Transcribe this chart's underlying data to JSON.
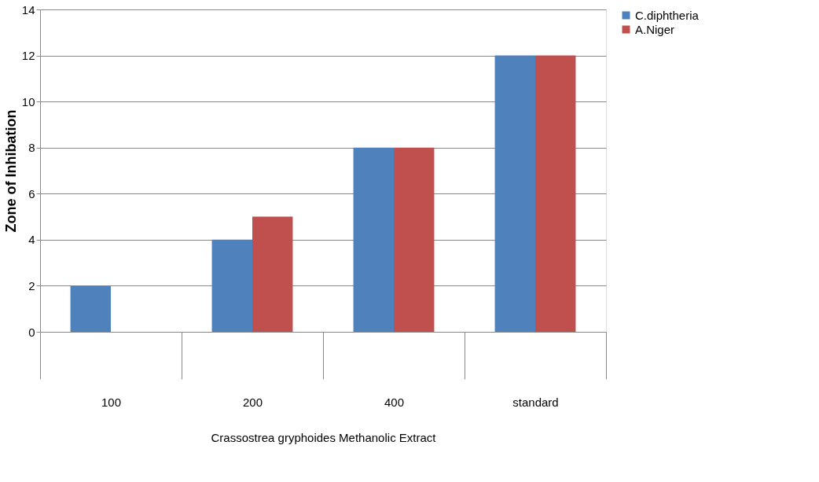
{
  "chart_data": {
    "type": "bar",
    "xlabel": "Crassostrea gryphoides Methanolic Extract",
    "ylabel": "Zone of Inhibation",
    "categories": [
      "100",
      "200",
      "400",
      "standard"
    ],
    "series": [
      {
        "name": "C.diphtheria",
        "color": "#4f81bd",
        "values": [
          2,
          4,
          8,
          12
        ]
      },
      {
        "name": "A.Niger",
        "color": "#c0504d",
        "values": [
          0,
          5,
          8,
          12
        ]
      }
    ],
    "ylim": [
      0,
      14
    ],
    "yticks": [
      0,
      2,
      4,
      6,
      8,
      10,
      12,
      14
    ],
    "grid": "y",
    "legend": "right"
  }
}
